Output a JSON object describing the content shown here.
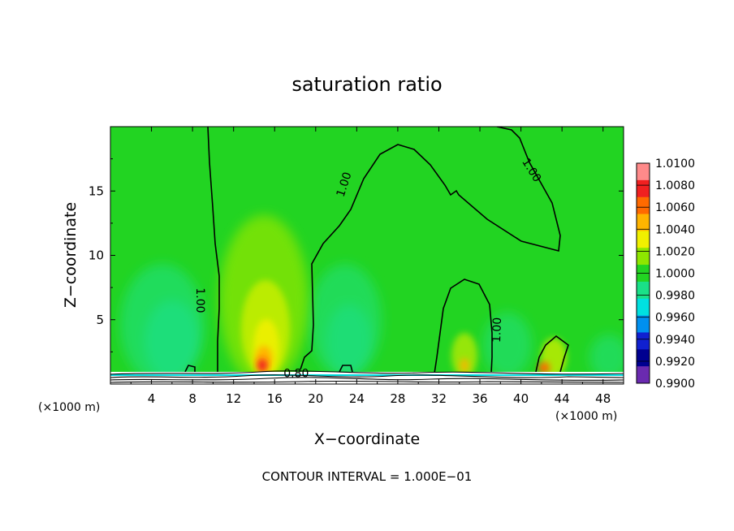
{
  "chart_data": {
    "type": "heatmap",
    "title": "saturation ratio",
    "xlabel": "X−coordinate",
    "ylabel": "Z−coordinate",
    "x_unit": "(×1000 m)",
    "x_ticks": [
      4,
      8,
      12,
      16,
      20,
      24,
      28,
      32,
      36,
      40,
      44,
      48
    ],
    "y_ticks": [
      5,
      10,
      15
    ],
    "xlim": [
      0,
      50
    ],
    "ylim": [
      0,
      20
    ],
    "colorbar": {
      "levels": [
        "1.0100",
        "1.0080",
        "1.0060",
        "1.0040",
        "1.0020",
        "1.0000",
        "0.9980",
        "0.9960",
        "0.9940",
        "0.9920",
        "0.9900"
      ],
      "colors": [
        "#ff8a8a",
        "#f02020",
        "#ff6a00",
        "#ffb400",
        "#f0f000",
        "#8ee600",
        "#22d422",
        "#1ae088",
        "#00e0e0",
        "#0090f0",
        "#1020d0",
        "#000090",
        "#6a2ab0"
      ]
    },
    "contour_labels": [
      {
        "text": "1.00",
        "x": 8.7,
        "y": 6.5,
        "angle": 90
      },
      {
        "text": "1.00",
        "x": 22.8,
        "y": 15.5,
        "angle": -72
      },
      {
        "text": "1.00",
        "x": 41.0,
        "y": 16.6,
        "angle": 58
      },
      {
        "text": "1.00",
        "x": 37.7,
        "y": 4.2,
        "angle": -88
      },
      {
        "text": "0.80",
        "x": 18.1,
        "y": 0.8,
        "angle": 0
      }
    ],
    "footer": "CONTOUR INTERVAL =  1.000E−01"
  }
}
